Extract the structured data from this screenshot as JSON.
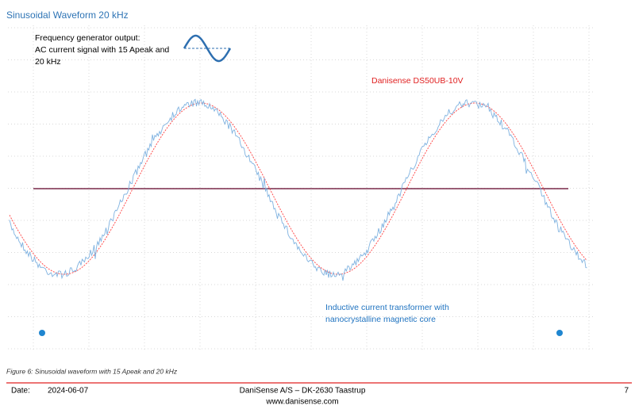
{
  "title": "Sinusoidal Waveform 20 kHz",
  "annotations": {
    "generator": [
      "Frequency generator output:",
      "AC current signal with 15 Apeak and",
      "20 kHz"
    ],
    "sensor": "Danisense DS50UB-10V",
    "transformer": [
      "Inductive current transformer with",
      "nanocrystalline magnetic core"
    ]
  },
  "caption": "Figure 6: Sinusoidal waveform with 15 Apeak and 20 kHz",
  "footer": {
    "date_label": "Date:",
    "date": "2024-06-07",
    "company": "DaniSense A/S – DK-2630 Taastrup",
    "website": "www.danisense.com",
    "page": "7"
  }
}
